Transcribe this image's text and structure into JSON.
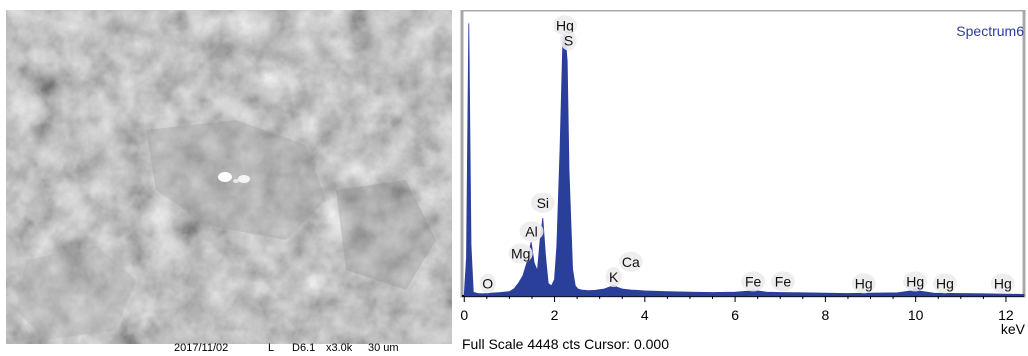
{
  "sem_caption": {
    "date": "2017/11/02",
    "meta": "L",
    "code": "D6.1",
    "magnification": "x3.0k",
    "scale": "30 um"
  },
  "chart_data": {
    "type": "area",
    "title": "Spectrum6",
    "xlabel": "keV",
    "ylabel": "",
    "xlim": [
      -0.05,
      12.4
    ],
    "ylim": [
      0,
      4448
    ],
    "x_ticks": [
      0,
      2,
      4,
      6,
      8,
      10,
      12
    ],
    "x_tick_labels": [
      "0",
      "2",
      "4",
      "6",
      "8",
      "10",
      "12"
    ],
    "x_unit_label": "keV",
    "color": "#2a3f9a",
    "footer": "Full Scale 4448 cts Cursor: 0.000",
    "series": [
      {
        "x": [
          0.0,
          0.05,
          0.1,
          0.15,
          0.2,
          0.3,
          0.4,
          0.5,
          0.6,
          0.8,
          1.0,
          1.1,
          1.2,
          1.3,
          1.4,
          1.48,
          1.55,
          1.62,
          1.68,
          1.74,
          1.8,
          1.86,
          1.93,
          2.0,
          2.05,
          2.12,
          2.18,
          2.23,
          2.28,
          2.32,
          2.36,
          2.4,
          2.46,
          2.52,
          2.6,
          2.75,
          2.9,
          3.1,
          3.25,
          3.31,
          3.38,
          3.5,
          3.69,
          3.8,
          4.0,
          4.5,
          5.0,
          5.5,
          6.0,
          6.3,
          6.4,
          6.5,
          6.7,
          7.0,
          7.5,
          8.0,
          8.5,
          9.0,
          9.6,
          9.9,
          9.99,
          10.1,
          10.4,
          11.0,
          11.5,
          12.0,
          12.4
        ],
        "y": [
          40,
          600,
          4300,
          800,
          60,
          40,
          35,
          40,
          45,
          55,
          70,
          110,
          200,
          320,
          560,
          850,
          520,
          400,
          880,
          1230,
          640,
          200,
          160,
          260,
          780,
          2300,
          3950,
          4180,
          3700,
          2000,
          1200,
          420,
          160,
          110,
          95,
          85,
          90,
          110,
          150,
          180,
          140,
          110,
          95,
          90,
          80,
          70,
          60,
          55,
          60,
          75,
          100,
          80,
          60,
          55,
          50,
          45,
          40,
          45,
          50,
          80,
          120,
          75,
          45,
          40,
          35,
          30,
          25
        ]
      }
    ],
    "peak_labels": [
      {
        "label": "O",
        "x": 0.52,
        "y": 200
      },
      {
        "label": "Mg",
        "x": 1.25,
        "y": 670
      },
      {
        "label": "Al",
        "x": 1.49,
        "y": 1020
      },
      {
        "label": "Si",
        "x": 1.74,
        "y": 1470
      },
      {
        "label": "Hg",
        "x": 2.23,
        "y": 4270
      },
      {
        "label": "S",
        "x": 2.31,
        "y": 4030
      },
      {
        "label": "Ca",
        "x": 3.69,
        "y": 540
      },
      {
        "label": "K",
        "x": 3.31,
        "y": 300
      },
      {
        "label": "Fe",
        "x": 6.4,
        "y": 230
      },
      {
        "label": "Fe",
        "x": 7.06,
        "y": 230
      },
      {
        "label": "Hg",
        "x": 8.85,
        "y": 200
      },
      {
        "label": "Hg",
        "x": 9.99,
        "y": 230
      },
      {
        "label": "Hg",
        "x": 10.65,
        "y": 200
      },
      {
        "label": "Hg",
        "x": 11.93,
        "y": 200
      }
    ]
  }
}
